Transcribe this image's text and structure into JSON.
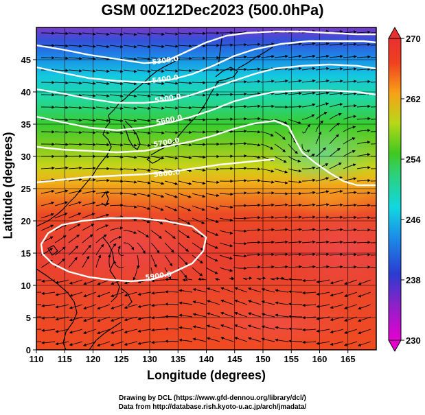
{
  "title": "GSM 00Z12Dec2023 (500.0hPa)",
  "x_axis": {
    "label": "Longitude (degrees)",
    "ticks": [
      "110",
      "115",
      "120",
      "125",
      "130",
      "135",
      "140",
      "145",
      "150",
      "155",
      "160",
      "165"
    ],
    "range": [
      110,
      170
    ]
  },
  "y_axis": {
    "label": "Latitude  (degrees)",
    "ticks": [
      "0",
      "5",
      "10",
      "15",
      "20",
      "25",
      "30",
      "35",
      "40",
      "45"
    ],
    "range": [
      0,
      50
    ]
  },
  "colorbar": {
    "ticks": [
      "230",
      "238",
      "246",
      "254",
      "262",
      "270"
    ],
    "min": 230,
    "max": 270,
    "colors": [
      "#e600d0",
      "#8a22c8",
      "#2a3cd0",
      "#1c8ce8",
      "#10d8e0",
      "#30d070",
      "#40c820",
      "#b8d818",
      "#f8a018",
      "#f04020",
      "#e83030"
    ]
  },
  "contours": {
    "labels": [
      "5300.0",
      "5400.0",
      "5500.0",
      "5600.0",
      "5700.0",
      "5800.0",
      "5900.0"
    ],
    "color": "#ffffff"
  },
  "credits": {
    "line1": "Drawing by DCL (https://www.gfd-dennou.org/library/dcl/)",
    "line2": "Data from http://database.rish.kyoto-u.ac.jp/arch/jmadata/"
  }
}
